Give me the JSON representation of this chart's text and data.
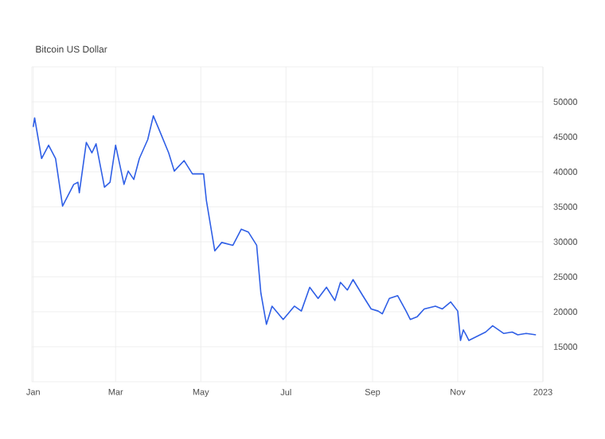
{
  "chart_data": {
    "type": "line",
    "title": "Bitcoin US Dollar",
    "x": [
      "2022-01-01",
      "2022-01-02",
      "2022-01-07",
      "2022-01-12",
      "2022-01-17",
      "2022-01-22",
      "2022-01-30",
      "2022-02-02",
      "2022-02-03",
      "2022-02-08",
      "2022-02-12",
      "2022-02-15",
      "2022-02-21",
      "2022-02-25",
      "2022-03-01",
      "2022-03-07",
      "2022-03-10",
      "2022-03-14",
      "2022-03-18",
      "2022-03-24",
      "2022-03-28",
      "2022-04-01",
      "2022-04-08",
      "2022-04-12",
      "2022-04-19",
      "2022-04-25",
      "2022-05-03",
      "2022-05-05",
      "2022-05-11",
      "2022-05-16",
      "2022-05-24",
      "2022-05-30",
      "2022-06-04",
      "2022-06-10",
      "2022-06-13",
      "2022-06-17",
      "2022-06-21",
      "2022-06-29",
      "2022-07-07",
      "2022-07-12",
      "2022-07-18",
      "2022-07-24",
      "2022-07-30",
      "2022-08-05",
      "2022-08-09",
      "2022-08-14",
      "2022-08-18",
      "2022-08-25",
      "2022-08-31",
      "2022-09-05",
      "2022-09-08",
      "2022-09-13",
      "2022-09-19",
      "2022-09-25",
      "2022-09-28",
      "2022-10-03",
      "2022-10-08",
      "2022-10-16",
      "2022-10-21",
      "2022-10-27",
      "2022-11-01",
      "2022-11-03",
      "2022-11-05",
      "2022-11-07",
      "2022-11-09",
      "2022-11-17",
      "2022-11-21",
      "2022-11-26",
      "2022-12-04",
      "2022-12-10",
      "2022-12-14",
      "2022-12-20",
      "2022-12-27"
    ],
    "series": [
      {
        "color": "#2f5fe6",
        "values": [
          46400,
          47700,
          41900,
          43800,
          41900,
          35100,
          38200,
          38500,
          37000,
          44200,
          42700,
          44000,
          37800,
          38500,
          43800,
          38200,
          40100,
          38900,
          41900,
          44600,
          48000,
          46100,
          42700,
          40100,
          41600,
          39700,
          39700,
          35900,
          28700,
          29900,
          29500,
          31800,
          31400,
          29500,
          22700,
          18200,
          20800,
          18900,
          20800,
          20100,
          23500,
          21900,
          23500,
          21600,
          24200,
          23100,
          24600,
          22300,
          20400,
          20100,
          19700,
          21900,
          22300,
          20100,
          18900,
          19300,
          20400,
          20800,
          20400,
          21400,
          20100,
          15900,
          17400,
          16700,
          15900,
          16700,
          17100,
          18000,
          16900,
          17100,
          16700,
          16900,
          16700
        ]
      }
    ],
    "xlim": [
      "2021-12-31",
      "2023-01-01"
    ],
    "xticks": [
      {
        "value": "2022-01-01",
        "label": "Jan"
      },
      {
        "value": "2022-03-01",
        "label": "Mar"
      },
      {
        "value": "2022-05-01",
        "label": "May"
      },
      {
        "value": "2022-07-01",
        "label": "Jul"
      },
      {
        "value": "2022-09-01",
        "label": "Sep"
      },
      {
        "value": "2022-11-01",
        "label": "Nov"
      },
      {
        "value": "2023-01-01",
        "label": "2023"
      }
    ],
    "ylim": [
      10000,
      55000
    ],
    "yticks": [
      15000,
      20000,
      25000,
      30000,
      35000,
      40000,
      45000,
      50000
    ],
    "grid": true,
    "marker": "none",
    "line_style": "solid"
  }
}
